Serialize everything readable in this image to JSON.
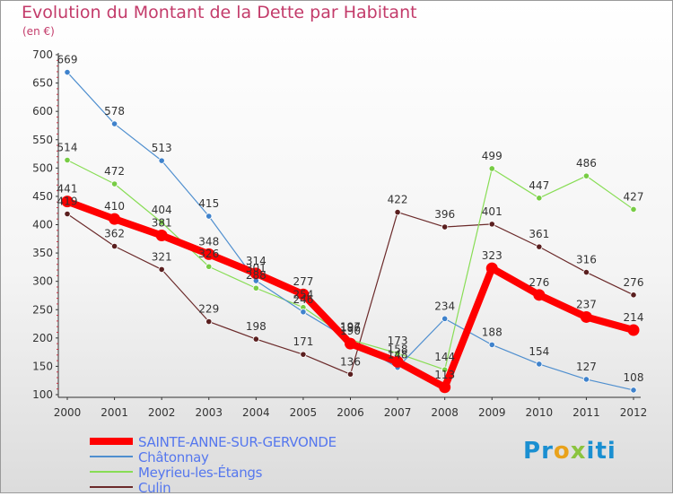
{
  "chart_data": {
    "type": "line",
    "title": "Evolution du Montant de la Dette par Habitant",
    "subtitle": "(en €)",
    "x": [
      "2000",
      "2001",
      "2002",
      "2003",
      "2004",
      "2005",
      "2006",
      "2007",
      "2008",
      "2009",
      "2010",
      "2011",
      "2012"
    ],
    "ylim": [
      100,
      700
    ],
    "yticks": [
      100,
      150,
      200,
      250,
      300,
      350,
      400,
      450,
      500,
      550,
      600,
      650,
      700
    ],
    "grid": false,
    "legend_position": "bottom-left",
    "series": [
      {
        "name": "SAINTE-ANNE-SUR-GERVONDE",
        "color": "#ff0000",
        "values": [
          441,
          410,
          381,
          348,
          314,
          277,
          190,
          158,
          113,
          323,
          276,
          237,
          214
        ]
      },
      {
        "name": "Châtonnay",
        "color": "#4f8fcf",
        "values": [
          669,
          578,
          513,
          415,
          301,
          246,
          196,
          148,
          234,
          188,
          154,
          127,
          108
        ]
      },
      {
        "name": "Meyrieu-les-Étangs",
        "color": "#88dd55",
        "values": [
          514,
          472,
          404,
          326,
          288,
          254,
          197,
          173,
          144,
          499,
          447,
          486,
          427
        ]
      },
      {
        "name": "Culin",
        "color": "#6b2a2a",
        "values": [
          419,
          362,
          321,
          229,
          198,
          171,
          136,
          422,
          396,
          401,
          361,
          316,
          276
        ]
      }
    ]
  },
  "brand": {
    "letters": [
      "P",
      "r",
      "o",
      "x",
      "i",
      "t",
      "i"
    ]
  }
}
